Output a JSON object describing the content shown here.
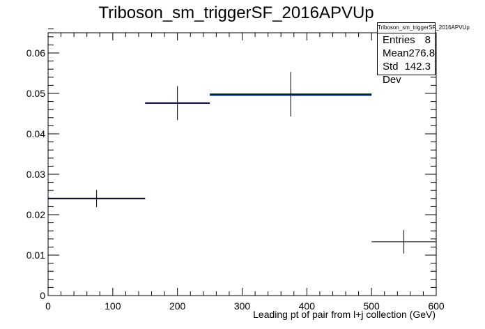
{
  "chart_data": {
    "type": "histogram",
    "title": "Triboson_sm_triggerSF_2016APVUp",
    "xlabel": "Leading pt of pair from l+j collection (GeV)",
    "ylabel": "",
    "xlim": [
      0,
      600
    ],
    "ylim": [
      0,
      0.065
    ],
    "x_ticks": [
      0,
      100,
      200,
      300,
      400,
      500,
      600
    ],
    "y_ticks": [
      0,
      0.01,
      0.02,
      0.03,
      0.04,
      0.05,
      0.06
    ],
    "x_tick_labels": [
      "0",
      "100",
      "200",
      "300",
      "400",
      "500",
      "600"
    ],
    "y_tick_labels": [
      "0",
      "0.01",
      "0.02",
      "0.03",
      "0.04",
      "0.05",
      "0.06"
    ],
    "bins": [
      {
        "x_low": 0,
        "x_high": 150,
        "value": 0.024,
        "error": 0.0021
      },
      {
        "x_low": 150,
        "x_high": 250,
        "value": 0.0476,
        "error": 0.0042
      },
      {
        "x_low": 250,
        "x_high": 500,
        "value": 0.0498,
        "error": 0.0055
      },
      {
        "x_low": 500,
        "x_high": 600,
        "value": 0.0133,
        "error": 0.0029
      }
    ],
    "overlays": [
      {
        "name": "",
        "color": "#00008b",
        "segments": [
          {
            "x_low": 0,
            "x_high": 150,
            "value": 0.024
          },
          {
            "x_low": 150,
            "x_high": 250,
            "value": 0.0476
          },
          {
            "x_low": 250,
            "x_high": 500,
            "value": 0.0496
          }
        ]
      },
      {
        "name": "",
        "color": "#008000",
        "segments": [
          {
            "x_low": 250,
            "x_high": 500,
            "value": 0.0498
          }
        ]
      }
    ],
    "stats": {
      "title": "Triboson_sm_triggerSF_2016APVUp",
      "rows": [
        {
          "label": "Entries",
          "value": "8"
        },
        {
          "label": "Mean",
          "value": "276.8"
        },
        {
          "label": "Std Dev",
          "value": "142.3"
        }
      ]
    },
    "colors": {
      "data": "#000000",
      "frame": "#000000"
    }
  }
}
